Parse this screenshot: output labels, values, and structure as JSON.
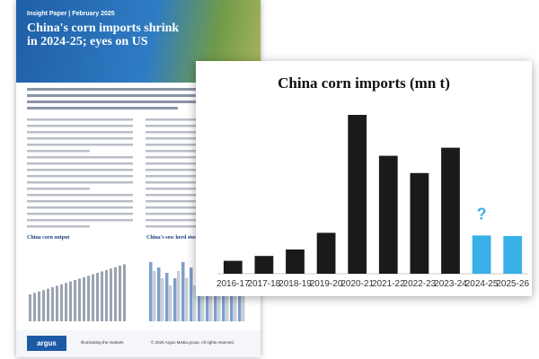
{
  "document": {
    "kicker": "Insight Paper | February 2025",
    "title": "China's corn imports shrink in 2024-25; eyes on US",
    "chart_titles": [
      "China corn output",
      "China's sow herd stocks"
    ],
    "logo": "argus",
    "tagline": "Illuminating the markets",
    "copyright": "© 2025 Argus Media group. All rights reserved."
  },
  "chart_data": {
    "type": "bar",
    "title": "China corn imports (mn t)",
    "categories": [
      "2016-17",
      "2017-18",
      "2018-19",
      "2019-20",
      "2020-21",
      "2021-22",
      "2022-23",
      "2023-24",
      "2024-25",
      "2025-26"
    ],
    "values": [
      2.4,
      3.3,
      4.5,
      7.6,
      29.5,
      21.9,
      18.7,
      23.4,
      7.1,
      7.0
    ],
    "colors": [
      "#1a1a1a",
      "#1a1a1a",
      "#1a1a1a",
      "#1a1a1a",
      "#1a1a1a",
      "#1a1a1a",
      "#1a1a1a",
      "#1a1a1a",
      "#3ab0e8",
      "#3ab0e8"
    ],
    "ylim": [
      0,
      32
    ],
    "annotation": {
      "text": "?",
      "category": "2024-25",
      "color": "#3ab0e8"
    }
  }
}
